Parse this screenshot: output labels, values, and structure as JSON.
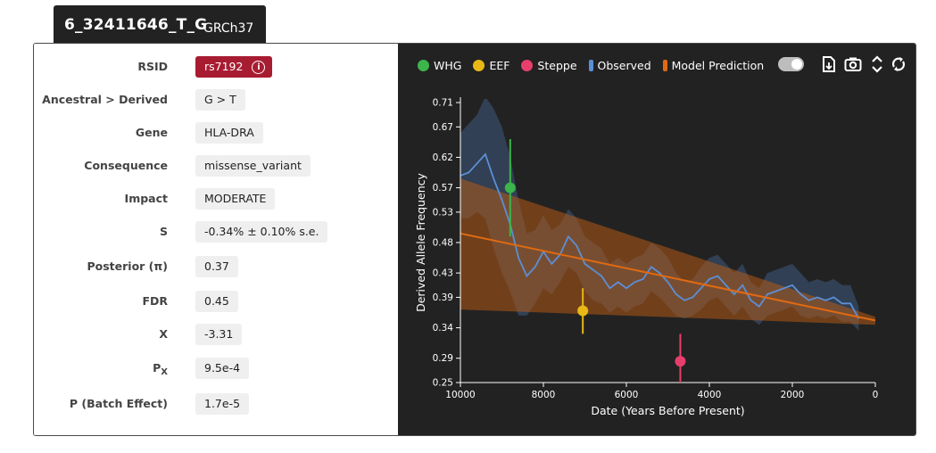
{
  "header": {
    "title": "6_32411646_T_G",
    "build": "GRCh37"
  },
  "details": [
    {
      "label": "RSID",
      "value": "rs7192",
      "kind": "rsid"
    },
    {
      "label": "Ancestral > Derived",
      "value": "G > T"
    },
    {
      "label": "Gene",
      "value": "HLA-DRA"
    },
    {
      "label": "Consequence",
      "value": "missense_variant"
    },
    {
      "label": "Impact",
      "value": "MODERATE"
    },
    {
      "label": "S",
      "value": "-0.34% ± 0.10% s.e."
    },
    {
      "label": "Posterior (π)",
      "value": "0.37"
    },
    {
      "label": "FDR",
      "value": "0.45"
    },
    {
      "label": "X",
      "value": "-3.31"
    },
    {
      "label": "P",
      "label_sub": "X",
      "value": "9.5e-4"
    },
    {
      "label": "P (Batch Effect)",
      "value": "1.7e-5"
    }
  ],
  "icons": {
    "info": "info-icon",
    "tools": [
      "download-icon",
      "camera-icon",
      "expand-icon",
      "refresh-icon"
    ]
  },
  "colors": {
    "background": "#222222",
    "WHG": "#3cb54a",
    "EEF": "#e8b816",
    "Steppe": "#e83e6c",
    "Observed": "#5b8fd6",
    "Model Prediction": "#e06a12",
    "rsid_badge": "#a81c31"
  },
  "chart_data": {
    "type": "line",
    "xlabel": "Date (Years Before Present)",
    "ylabel": "Derived Allele Frequency",
    "xlim": [
      10000,
      0
    ],
    "ylim": [
      0.25,
      0.71
    ],
    "x_ticks": [
      10000,
      8000,
      6000,
      4000,
      2000,
      0
    ],
    "y_ticks": [
      0.71,
      0.67,
      0.62,
      0.57,
      0.53,
      0.48,
      0.43,
      0.39,
      0.34,
      0.29,
      0.25
    ],
    "legend": [
      {
        "name": "WHG",
        "shape": "dot"
      },
      {
        "name": "EEF",
        "shape": "dot"
      },
      {
        "name": "Steppe",
        "shape": "dot"
      },
      {
        "name": "Observed",
        "shape": "bar"
      },
      {
        "name": "Model Prediction",
        "shape": "bar"
      }
    ],
    "legend_position": "top-left",
    "toggle_on": true,
    "grid": false,
    "observed": {
      "x": [
        10000,
        9800,
        9600,
        9400,
        9200,
        9000,
        8800,
        8600,
        8400,
        8200,
        8000,
        7800,
        7600,
        7400,
        7200,
        7000,
        6800,
        6600,
        6400,
        6200,
        6000,
        5800,
        5600,
        5400,
        5200,
        5000,
        4800,
        4600,
        4400,
        4200,
        4000,
        3800,
        3600,
        3400,
        3200,
        3000,
        2800,
        2600,
        2400,
        2200,
        2000,
        1800,
        1600,
        1400,
        1200,
        1000,
        800,
        600,
        400
      ],
      "y": [
        0.59,
        0.595,
        0.61,
        0.625,
        0.585,
        0.55,
        0.51,
        0.455,
        0.425,
        0.44,
        0.465,
        0.445,
        0.46,
        0.49,
        0.475,
        0.445,
        0.435,
        0.425,
        0.405,
        0.415,
        0.405,
        0.415,
        0.42,
        0.44,
        0.43,
        0.415,
        0.395,
        0.385,
        0.39,
        0.405,
        0.42,
        0.425,
        0.41,
        0.395,
        0.41,
        0.385,
        0.375,
        0.395,
        0.4,
        0.405,
        0.41,
        0.395,
        0.385,
        0.39,
        0.385,
        0.39,
        0.38,
        0.38,
        0.355
      ],
      "lower": [
        0.52,
        0.52,
        0.53,
        0.52,
        0.47,
        0.43,
        0.4,
        0.36,
        0.36,
        0.38,
        0.405,
        0.395,
        0.415,
        0.44,
        0.43,
        0.4,
        0.385,
        0.38,
        0.365,
        0.375,
        0.365,
        0.375,
        0.38,
        0.4,
        0.39,
        0.375,
        0.36,
        0.355,
        0.36,
        0.37,
        0.385,
        0.39,
        0.375,
        0.36,
        0.375,
        0.355,
        0.345,
        0.36,
        0.365,
        0.37,
        0.375,
        0.36,
        0.355,
        0.36,
        0.355,
        0.36,
        0.35,
        0.35,
        0.335
      ],
      "upper": [
        0.66,
        0.675,
        0.69,
        0.72,
        0.7,
        0.67,
        0.62,
        0.55,
        0.495,
        0.5,
        0.525,
        0.5,
        0.51,
        0.535,
        0.52,
        0.49,
        0.48,
        0.47,
        0.445,
        0.455,
        0.445,
        0.455,
        0.46,
        0.48,
        0.47,
        0.455,
        0.43,
        0.415,
        0.42,
        0.44,
        0.455,
        0.46,
        0.445,
        0.43,
        0.445,
        0.415,
        0.405,
        0.43,
        0.435,
        0.44,
        0.445,
        0.43,
        0.415,
        0.42,
        0.415,
        0.42,
        0.41,
        0.41,
        0.375
      ]
    },
    "model": {
      "x": [
        10000,
        0
      ],
      "y": [
        0.495,
        0.352
      ],
      "lower": [
        0.37,
        0.345
      ],
      "upper": [
        0.585,
        0.358
      ]
    },
    "points": [
      {
        "name": "WHG",
        "x": 8800,
        "y": 0.57,
        "lower": 0.49,
        "upper": 0.65
      },
      {
        "name": "EEF",
        "x": 7050,
        "y": 0.368,
        "lower": 0.33,
        "upper": 0.405
      },
      {
        "name": "Steppe",
        "x": 4700,
        "y": 0.285,
        "lower": 0.25,
        "upper": 0.33
      }
    ]
  }
}
